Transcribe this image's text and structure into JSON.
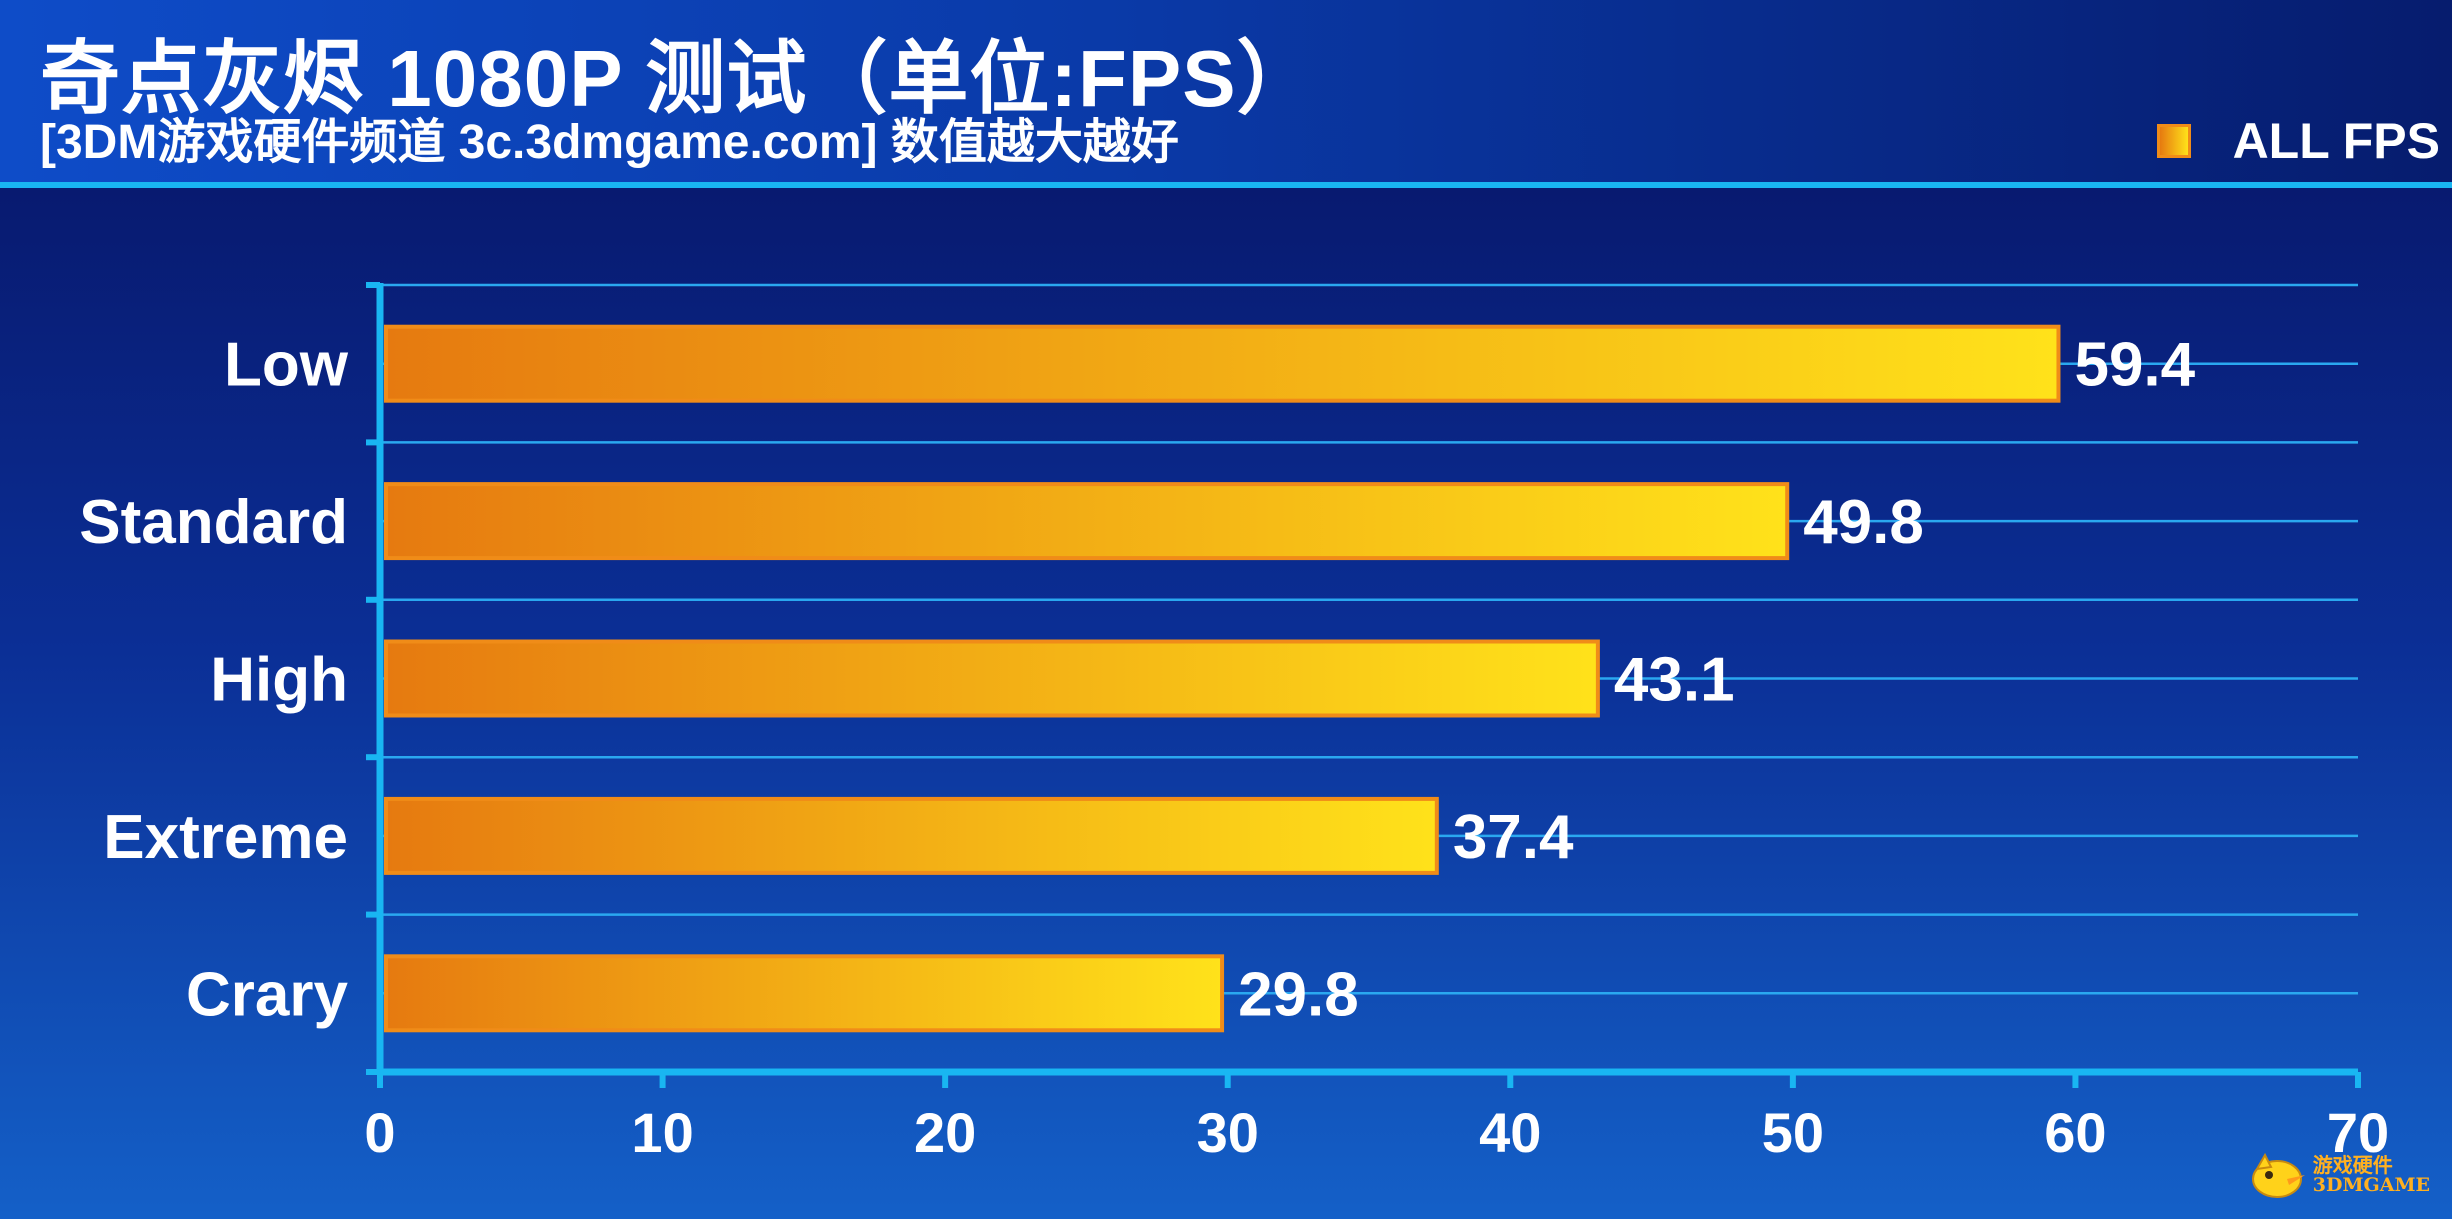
{
  "header": {
    "title": "奇点灰烬 1080P 测试（单位:FPS）",
    "subtitle": "[3DM游戏硬件频道 3c.3dmgame.com] 数值越大越好"
  },
  "colors": {
    "bar_start": "#e67a10",
    "bar_end": "#ffe21a",
    "bar_border": "#f08c18",
    "axis": "#19b6f2",
    "grid": "#2aa8f0",
    "text": "#ffffff"
  },
  "chart_data": {
    "type": "bar",
    "orientation": "horizontal",
    "categories": [
      "Low",
      "Standard",
      "High",
      "Extreme",
      "Crary"
    ],
    "series": [
      {
        "name": "ALL FPS",
        "values": [
          59.4,
          49.8,
          43.1,
          37.4,
          29.8
        ]
      }
    ],
    "value_labels": [
      "59.4",
      "49.8",
      "43.1",
      "37.4",
      "29.8"
    ],
    "xlim": [
      0,
      70
    ],
    "x_ticks": [
      0,
      10,
      20,
      30,
      40,
      50,
      60,
      70
    ],
    "legend": "top-right",
    "grid": true
  },
  "watermark": {
    "line1": "游戏硬件",
    "line2": "3DMGAME"
  }
}
